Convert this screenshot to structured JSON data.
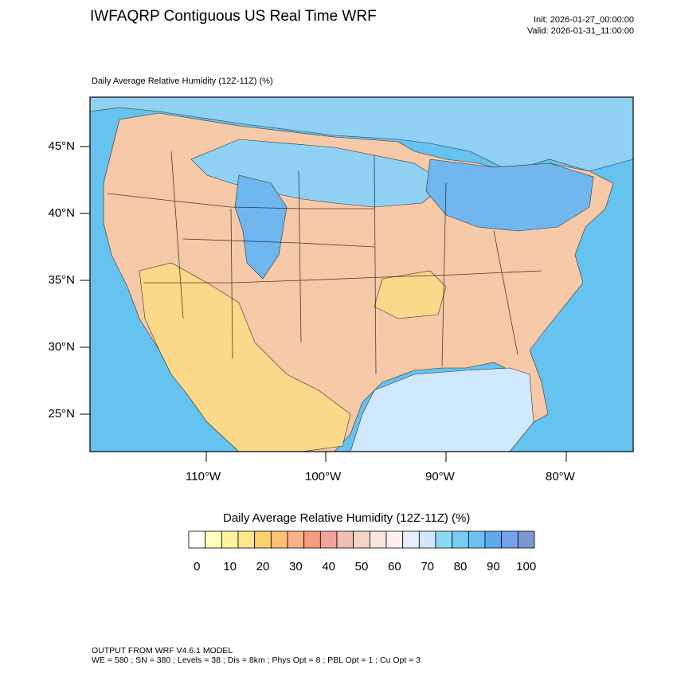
{
  "header": {
    "title": "IWFAQRP Contiguous US Real Time WRF",
    "init": "Init: 2026-01-27_00:00:00",
    "valid": "Valid: 2026-01-31_11:00:00",
    "subtitle": "Daily Average Relative Humidity (12Z-11Z)   (%)"
  },
  "map": {
    "lat_labels": [
      "45°N",
      "40°N",
      "35°N",
      "30°N",
      "25°N"
    ],
    "lon_labels": [
      "110°W",
      "100°W",
      "90°W",
      "80°W"
    ],
    "colors": {
      "ocean": "#66c2ee",
      "land_dry_west": "#f6c9a8",
      "land_very_dry_sw": "#fbd98a",
      "land_moist_north": "#8fd0f3",
      "land_moist_ne": "#6fb7ee",
      "gulf": "#d0e8fb"
    }
  },
  "colorbar": {
    "title": "Daily Average Relative Humidity (12Z-11Z)  (%)",
    "colors": [
      "#ffffff",
      "#ffffc0",
      "#fff5a0",
      "#ffe88a",
      "#ffd070",
      "#ffc07a",
      "#fcb08a",
      "#f99a7e",
      "#f3a39a",
      "#f2bdb2",
      "#f5d4c8",
      "#f6e6e0",
      "#fdf2f2",
      "#e5effd",
      "#d2e6fb",
      "#8ed8f7",
      "#79cdf4",
      "#6ec0f3",
      "#5fa9ef",
      "#75a2ea",
      "#7899c9"
    ],
    "tick_labels": [
      "0",
      "10",
      "20",
      "30",
      "40",
      "50",
      "60",
      "70",
      "80",
      "90",
      "100"
    ]
  },
  "footer": {
    "line1": "OUTPUT FROM WRF V4.6.1 MODEL",
    "line2": "WE = 580 ; SN = 380 ; Levels = 38 ; Dis = 8km ; Phys Opt = 8 ; PBL Opt = 1 ; Cu Opt = 3"
  }
}
